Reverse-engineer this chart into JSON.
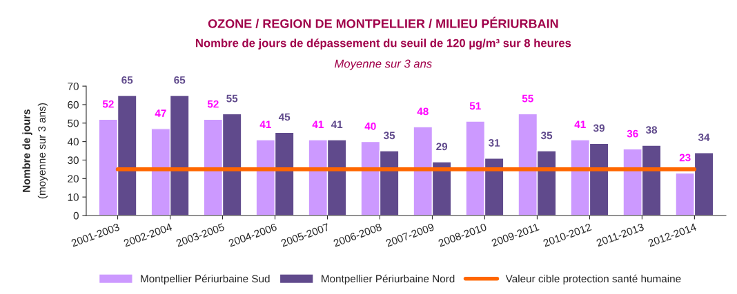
{
  "chart_data": {
    "type": "bar",
    "title": "OZONE / REGION DE MONTPELLIER / MILIEU PÉRIURBAIN",
    "subtitle": "Nombre de jours de dépassement du seuil de 120 µg/m³ sur 8 heures",
    "annotations": [
      "Moyenne sur 3 ans"
    ],
    "ylabel": "Nombre de jours\n(moyenne sur 3 ans)",
    "categories": [
      "2001-2003",
      "2002-2004",
      "2003-2005",
      "2004-2006",
      "2005-2007",
      "2006-2008",
      "2007-2009",
      "2008-2010",
      "2009-2011",
      "2010-2012",
      "2011-2013",
      "2012-2014"
    ],
    "series": [
      {
        "name": "Montpellier Périurbaine Sud",
        "color": "#cc99ff",
        "values": [
          52,
          47,
          52,
          41,
          41,
          40,
          48,
          51,
          55,
          41,
          36,
          23
        ]
      },
      {
        "name": "Montpellier Périurbaine Nord",
        "color": "#604a8c",
        "values": [
          65,
          65,
          55,
          45,
          41,
          35,
          29,
          31,
          35,
          39,
          38,
          34
        ]
      }
    ],
    "ref_lines": [
      {
        "axis": "y",
        "value": 25,
        "label": "Valeur cible protection santé humaine",
        "color": "#ff6600"
      }
    ],
    "ylim": [
      0,
      70
    ],
    "yticks": [
      0,
      10,
      20,
      30,
      40,
      50,
      60,
      70
    ],
    "data_labels": true,
    "grid": false,
    "legend": "bottom"
  }
}
